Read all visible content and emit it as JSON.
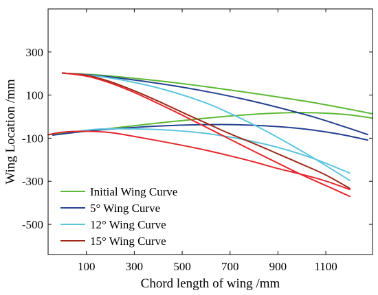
{
  "chart_data": {
    "type": "line",
    "title": "",
    "xlabel": "Chord length of wing /mm",
    "ylabel": "Wing Location /mm",
    "xlim": [
      -60,
      1295
    ],
    "ylim": [
      -640,
      500
    ],
    "xticks": [
      100,
      300,
      500,
      700,
      900,
      1100
    ],
    "yticks": [
      300,
      100,
      -100,
      -300,
      -500
    ],
    "grid": false,
    "legend_position": "bottom-left",
    "series": [
      {
        "name": "Initial Wing Curve",
        "color": "#5cb833",
        "lines": [
          {
            "x": [
              0,
              150,
              300,
              450,
              600,
              750,
              900,
              1050,
              1200,
              1295
            ],
            "y": [
              202,
              193,
              178,
              160,
              139,
              116,
              91,
              65,
              34,
              13
            ]
          },
          {
            "x": [
              -60,
              100,
              200,
              300,
              400,
              500,
              600,
              700,
              800,
              900,
              1000,
              1100,
              1200,
              1295
            ],
            "y": [
              -84,
              -68,
              -55,
              -42,
              -30,
              -18,
              -7,
              3,
              11,
              17,
              19,
              16,
              8,
              -7
            ]
          }
        ]
      },
      {
        "name": "5° Wing Curve",
        "color": "#23408e",
        "lines": [
          {
            "x": [
              0,
              150,
              300,
              450,
              600,
              750,
              900,
              1050,
              1200,
              1275
            ],
            "y": [
              202,
              190,
              170,
              146,
              117,
              83,
              43,
              -2,
              -55,
              -83
            ]
          },
          {
            "x": [
              -40,
              100,
              250,
              400,
              550,
              700,
              850,
              1000,
              1150,
              1275
            ],
            "y": [
              -86,
              -67,
              -54,
              -44,
              -38,
              -37,
              -43,
              -56,
              -80,
              -109
            ]
          }
        ]
      },
      {
        "name": "12° Wing Curve",
        "color": "#5cc5de",
        "lines": [
          {
            "x": [
              0,
              150,
              300,
              450,
              600,
              700,
              800,
              900,
              1000,
              1100,
              1200
            ],
            "y": [
              202,
              187,
              159,
              118,
              63,
              15,
              -38,
              -97,
              -160,
              -227,
              -296
            ]
          },
          {
            "x": [
              50,
              150,
              300,
              450,
              600,
              750,
              900,
              1050,
              1200
            ],
            "y": [
              -70,
              -58,
              -57,
              -63,
              -78,
              -105,
              -143,
              -195,
              -262
            ]
          }
        ]
      },
      {
        "name": "15° Wing Curve",
        "color": "#9c2a19",
        "lines": [
          {
            "x": [
              0,
              100,
              200,
              300,
              400,
              500,
              600,
              700,
              800,
              900,
              1000,
              1100,
              1200
            ],
            "y": [
              202,
              192,
              162,
              120,
              72,
              20,
              -30,
              -80,
              -125,
              -173,
              -221,
              -271,
              -333
            ]
          }
        ]
      },
      {
        "name": "",
        "color": "#e4262b",
        "lines": [
          {
            "x": [
              0,
              100,
              200,
              300,
              400,
              500,
              600,
              700,
              800,
              900,
              1000,
              1100,
              1200
            ],
            "y": [
              203,
              188,
              156,
              112,
              61,
              7,
              -49,
              -105,
              -161,
              -216,
              -270,
              -320,
              -370
            ]
          },
          {
            "x": [
              -60,
              0,
              100,
              200,
              300,
              400,
              500,
              600,
              700,
              800,
              900,
              1000,
              1100,
              1200
            ],
            "y": [
              -84,
              -72,
              -68,
              -74,
              -92,
              -112,
              -133,
              -156,
              -182,
              -210,
              -241,
              -268,
              -299,
              -338
            ]
          }
        ]
      }
    ]
  }
}
